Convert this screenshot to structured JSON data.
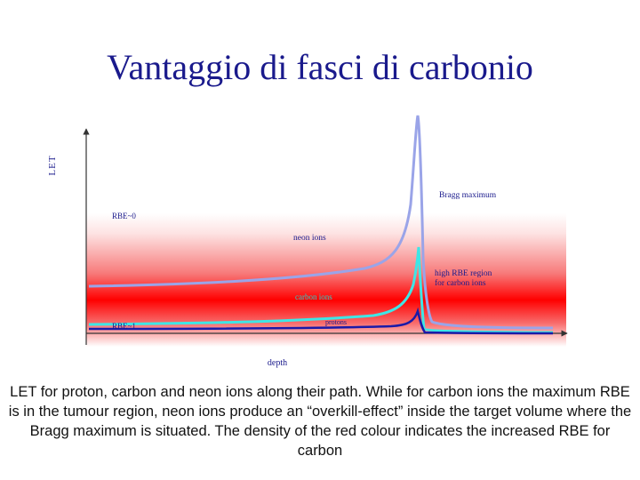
{
  "title": "Vantaggio di fasci di carbonio",
  "diagram": {
    "y_axis_label": "LET",
    "x_axis_label": "depth",
    "labels": {
      "bragg_maximum": "Bragg maximum",
      "rbe_high": "RBE~0",
      "neon_ions": "neon ions",
      "high_rbe_region_line1": "high RBE region",
      "high_rbe_region_line2": "for carbon ions",
      "carbon_ions": "carbon ions",
      "rbe_low": "RBE~1",
      "protons": "protons"
    },
    "colors": {
      "neon_curve": "#9aa4e8",
      "carbon_curve": "#3ee6e6",
      "proton_curve": "#1a1aa8",
      "rbe_band": "#ff0000",
      "label_text": "#1a1a8c",
      "carbon_label_text": "#2ad0c8"
    }
  },
  "caption": "LET for proton, carbon and neon ions along their path. While for carbon ions the maximum RBE is in the tumour region, neon ions produce an “overkill-effect” inside the target volume where the Bragg maximum is situated. The density of the red colour indicates the increased RBE for carbon"
}
